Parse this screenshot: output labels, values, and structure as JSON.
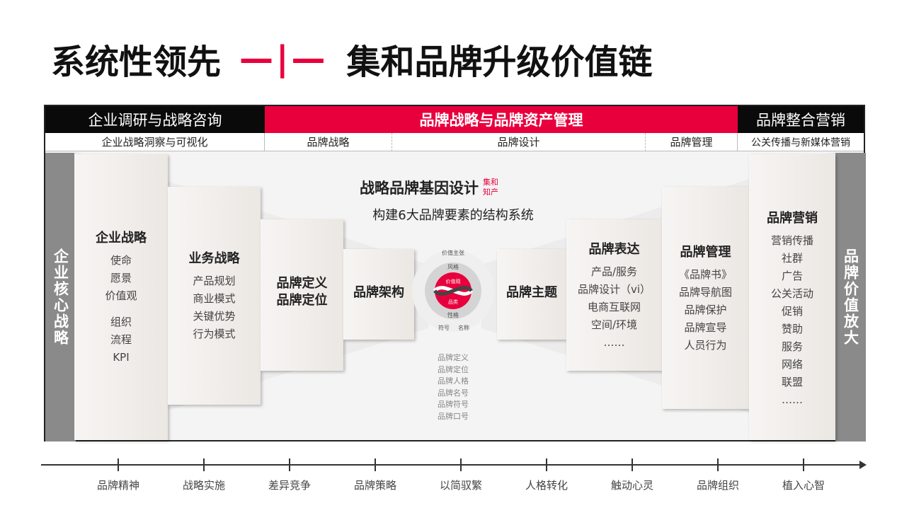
{
  "title": {
    "left": "系统性领先",
    "sep": "—|—",
    "right": "集和品牌升级价值链"
  },
  "colors": {
    "accent": "#e8003d",
    "dark": "#0a0a0a",
    "bar": "#8a8a8a"
  },
  "header": {
    "col1": "企业调研与战略咨询",
    "col2": "品牌战略与品牌资产管理",
    "col3": "品牌整合营销",
    "sub": [
      "企业战略洞察与可视化",
      "品牌战略",
      "品牌设计",
      "品牌管理",
      "公关传播与新媒体营销"
    ]
  },
  "side": {
    "left": "企业核心战略",
    "right": "品牌价值放大"
  },
  "center": {
    "title": "战略品牌基因设计",
    "badge1": "集和",
    "badge2": "知产",
    "subtitle": "构建6大品牌要素的结构系统",
    "wheel": {
      "outer_top": "价值主张",
      "ring_top": "风格",
      "core_top": "价值观",
      "core_bottom": "品类",
      "ring_bottom": "性格",
      "outer_left": "符号",
      "outer_right": "名称"
    },
    "list": [
      "品牌定义",
      "品牌定位",
      "品牌人格",
      "品牌名号",
      "品牌符号",
      "品牌口号"
    ]
  },
  "panels": [
    {
      "title": "企业战略",
      "items": [
        "使命",
        "愿景",
        "价值观"
      ],
      "items2": [
        "组织",
        "流程",
        "KPI"
      ]
    },
    {
      "title": "业务战略",
      "items": [
        "产品规划",
        "商业模式",
        "关键优势",
        "行为模式"
      ]
    },
    {
      "title": "品牌定义\n品牌定位",
      "items": []
    },
    {
      "title": "品牌架构",
      "items": []
    },
    {
      "title": "品牌主题",
      "items": []
    },
    {
      "title": "品牌表达",
      "items": [
        "产品/服务",
        "品牌设计（vi）",
        "电商互联网",
        "空间/环境",
        "……"
      ]
    },
    {
      "title": "品牌管理",
      "items": [
        "《品牌书》",
        "品牌导航图",
        "品牌保护",
        "品牌宣导",
        "人员行为"
      ]
    },
    {
      "title": "品牌营销",
      "items": [
        "营销传播",
        "社群",
        "广告",
        "公关活动",
        "促销",
        "赞助",
        "服务",
        "网络",
        "联盟",
        "……"
      ]
    }
  ],
  "timeline": [
    "品牌精神",
    "战略实施",
    "差异竞争",
    "品牌策略",
    "以简驭繁",
    "人格转化",
    "触动心灵",
    "品牌组织",
    "植入心智"
  ]
}
